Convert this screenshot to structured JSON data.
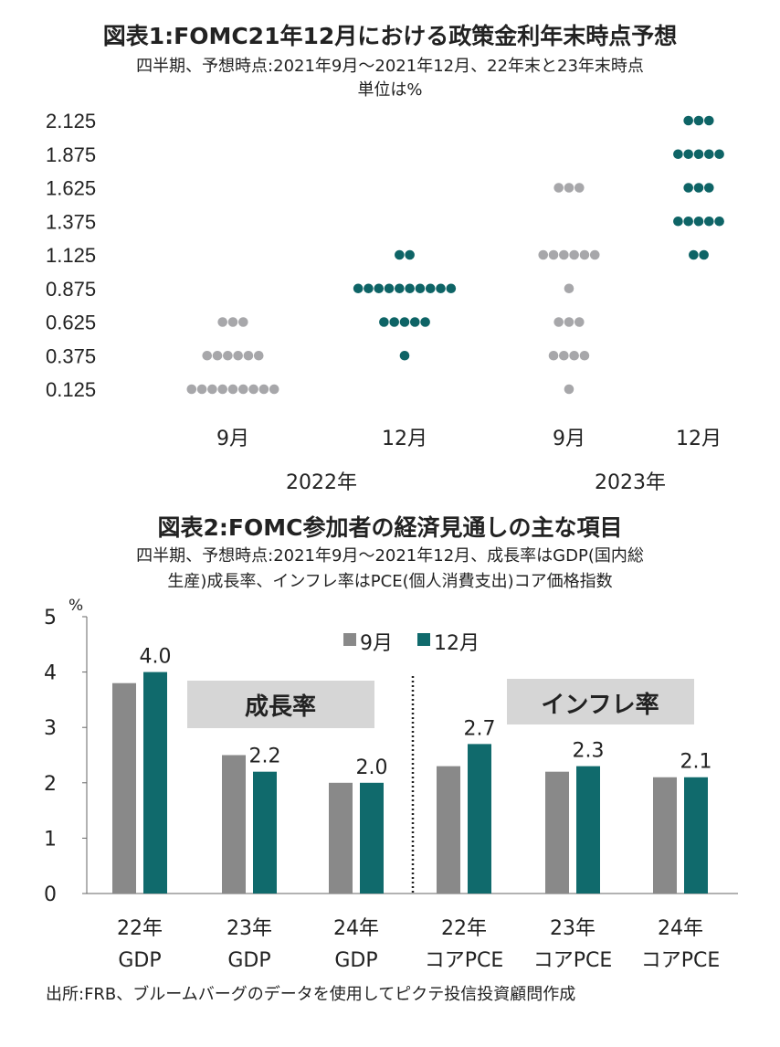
{
  "colors": {
    "sep": "#a7a7aa",
    "dec": "#0e6466",
    "sep_bar": "#898989",
    "dec_bar": "#106a6c",
    "box": "#d6d6d6"
  },
  "chart_data": [
    {
      "type": "scatter",
      "title": "図表1:FOMC21年12月における政策金利年末時点予想",
      "subtitle": "四半期、予想時点:2021年9月〜2021年12月、22年末と23年末時点",
      "unit": "単位は%",
      "y_ticks": [
        "2.125",
        "1.875",
        "1.625",
        "1.375",
        "1.125",
        "0.875",
        "0.625",
        "0.375",
        "0.125"
      ],
      "columns": [
        {
          "label": "9月",
          "group": "2022年",
          "series": "sep",
          "counts": {
            "0.125": 9,
            "0.375": 6,
            "0.625": 3
          }
        },
        {
          "label": "12月",
          "group": "2022年",
          "series": "dec",
          "counts": {
            "0.375": 1,
            "0.625": 5,
            "0.875": 10,
            "1.125": 2
          }
        },
        {
          "label": "9月",
          "group": "2023年",
          "series": "sep",
          "counts": {
            "0.125": 1,
            "0.375": 4,
            "0.625": 3,
            "0.875": 1,
            "1.125": 6,
            "1.625": 3
          }
        },
        {
          "label": "12月",
          "group": "2023年",
          "series": "dec",
          "counts": {
            "1.125": 2,
            "1.375": 5,
            "1.625": 3,
            "1.875": 5,
            "2.125": 3
          }
        }
      ],
      "groups": [
        "2022年",
        "2023年"
      ]
    },
    {
      "type": "bar",
      "title": "図表2:FOMC参加者の経済見通しの主な項目",
      "subtitle_lines": [
        "四半期、予想時点:2021年9月〜2021年12月、成長率はGDP(国内総",
        "生産)成長率、インフレ率はPCE(個人消費支出)コア価格指数"
      ],
      "ylabel": "%",
      "ylim": [
        0,
        5
      ],
      "y_ticks": [
        "0",
        "1",
        "2",
        "3",
        "4",
        "5"
      ],
      "categories": [
        [
          "22年",
          "GDP"
        ],
        [
          "23年",
          "GDP"
        ],
        [
          "24年",
          "GDP"
        ],
        [
          "22年",
          "コアPCE"
        ],
        [
          "23年",
          "コアPCE"
        ],
        [
          "24年",
          "コアPCE"
        ]
      ],
      "series": [
        {
          "name": "9月",
          "values": [
            3.8,
            2.5,
            2.0,
            2.3,
            2.2,
            2.1
          ]
        },
        {
          "name": "12月",
          "values": [
            4.0,
            2.2,
            2.0,
            2.7,
            2.3,
            2.1
          ],
          "data_labels": [
            "4.0",
            "2.2",
            "2.0",
            "2.7",
            "2.3",
            "2.1"
          ]
        }
      ],
      "annotations": [
        "成長率",
        "インフレ率"
      ]
    }
  ],
  "footer": "出所:FRB、ブルームバーグのデータを使用してピクテ投信投資顧問作成"
}
